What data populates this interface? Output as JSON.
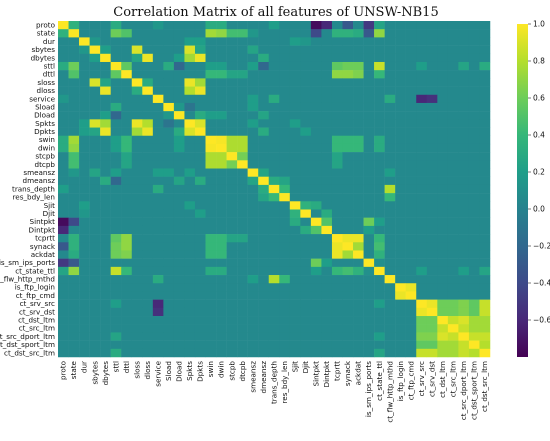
{
  "chart_data": {
    "type": "heatmap",
    "title": "Correlation Matrix of all features of  UNSW-NB15",
    "labels": [
      "proto",
      "state",
      "dur",
      "sbytes",
      "dbytes",
      "sttl",
      "dttl",
      "sloss",
      "dloss",
      "service",
      "Sload",
      "Dload",
      "Spkts",
      "Dpkts",
      "swin",
      "dwin",
      "stcpb",
      "dtcpb",
      "smeansz",
      "dmeansz",
      "trans_depth",
      "res_bdy_len",
      "Sjit",
      "Djit",
      "Sintpkt",
      "Dintpkt",
      "tcprtt",
      "synack",
      "ackdat",
      "is_sm_ips_ports",
      "ct_state_ttl",
      "ct_flw_http_mthd",
      "is_ftp_login",
      "ct_ftp_cmd",
      "ct_srv_src",
      "ct_srv_dst",
      "ct_dst_ltm",
      "ct_src_ltm",
      "ct_src_dport_ltm",
      "ct_dst_sport_ltm",
      "ct_dst_src_ltm"
    ],
    "colorbar": {
      "min": -0.8,
      "max": 1.0,
      "ticks": [
        1.0,
        0.8,
        0.6,
        0.4,
        0.2,
        0.0,
        -0.2,
        -0.4,
        -0.6
      ],
      "colormap": "viridis"
    },
    "base_value": 0.05,
    "cells": [
      [
        "proto",
        "state",
        0.35
      ],
      [
        "proto",
        "sttl",
        0.3
      ],
      [
        "proto",
        "swin",
        0.3
      ],
      [
        "proto",
        "dwin",
        0.3
      ],
      [
        "proto",
        "Sintpkt",
        -0.75
      ],
      [
        "proto",
        "Dintpkt",
        -0.6
      ],
      [
        "proto",
        "synack",
        -0.3
      ],
      [
        "proto",
        "is_sm_ips_ports",
        -0.5
      ],
      [
        "proto",
        "ct_state_ttl",
        0.25
      ],
      [
        "proto",
        "trans_depth",
        0.2
      ],
      [
        "proto",
        "service",
        0.15
      ],
      [
        "state",
        "sttl",
        0.6
      ],
      [
        "state",
        "dttl",
        0.5
      ],
      [
        "state",
        "swin",
        0.75
      ],
      [
        "state",
        "dwin",
        0.7
      ],
      [
        "state",
        "stcpb",
        0.45
      ],
      [
        "state",
        "dtcpb",
        0.45
      ],
      [
        "state",
        "ct_state_ttl",
        0.7
      ],
      [
        "state",
        "tcprtt",
        0.35
      ],
      [
        "state",
        "synack",
        0.35
      ],
      [
        "state",
        "ackdat",
        0.3
      ],
      [
        "state",
        "Sintpkt",
        -0.4
      ],
      [
        "state",
        "is_sm_ips_ports",
        -0.3
      ],
      [
        "state",
        "smeansz",
        0.15
      ],
      [
        "dur",
        "Sjit",
        0.2
      ],
      [
        "dur",
        "Djit",
        0.15
      ],
      [
        "dur",
        "Spkts",
        0.2
      ],
      [
        "dur",
        "Dpkts",
        0.2
      ],
      [
        "dur",
        "sbytes",
        0.15
      ],
      [
        "sbytes",
        "sloss",
        0.9
      ],
      [
        "sbytes",
        "Spkts",
        0.9
      ],
      [
        "sbytes",
        "dbytes",
        0.2
      ],
      [
        "sbytes",
        "Dpkts",
        0.25
      ],
      [
        "sbytes",
        "smeansz",
        0.25
      ],
      [
        "dbytes",
        "dloss",
        0.95
      ],
      [
        "dbytes",
        "Dpkts",
        0.95
      ],
      [
        "dbytes",
        "Spkts",
        0.75
      ],
      [
        "dbytes",
        "dmeansz",
        0.3
      ],
      [
        "dbytes",
        "sloss",
        0.25
      ],
      [
        "dbytes",
        "Dload",
        0.2
      ],
      [
        "sttl",
        "dttl",
        0.55
      ],
      [
        "sttl",
        "ct_state_ttl",
        0.85
      ],
      [
        "sttl",
        "synack",
        0.6
      ],
      [
        "sttl",
        "ackdat",
        0.6
      ],
      [
        "sttl",
        "tcprtt",
        0.55
      ],
      [
        "sttl",
        "Sload",
        0.3
      ],
      [
        "sttl",
        "dmeansz",
        -0.2
      ],
      [
        "sttl",
        "Dload",
        -0.2
      ],
      [
        "sttl",
        "swin",
        0.2
      ],
      [
        "sttl",
        "dwin",
        0.2
      ],
      [
        "sttl",
        "smeansz",
        0.2
      ],
      [
        "dttl",
        "synack",
        0.7
      ],
      [
        "dttl",
        "ackdat",
        0.65
      ],
      [
        "dttl",
        "tcprtt",
        0.7
      ],
      [
        "dttl",
        "ct_state_ttl",
        0.4
      ],
      [
        "dttl",
        "swin",
        0.4
      ],
      [
        "dttl",
        "dwin",
        0.4
      ],
      [
        "dttl",
        "stcpb",
        0.25
      ],
      [
        "dttl",
        "dtcpb",
        0.25
      ],
      [
        "sloss",
        "Spkts",
        0.95
      ],
      [
        "sloss",
        "Dpkts",
        0.75
      ],
      [
        "sloss",
        "dloss",
        0.3
      ],
      [
        "dloss",
        "Dpkts",
        0.95
      ],
      [
        "dloss",
        "Spkts",
        0.8
      ],
      [
        "service",
        "ct_srv_src",
        -0.6
      ],
      [
        "service",
        "ct_srv_dst",
        -0.55
      ],
      [
        "service",
        "ct_flw_http_mthd",
        0.3
      ],
      [
        "service",
        "trans_depth",
        0.3
      ],
      [
        "service",
        "smeansz",
        0.2
      ],
      [
        "Sload",
        "Dload",
        0.15
      ],
      [
        "Sload",
        "smeansz",
        0.2
      ],
      [
        "Sload",
        "Spkts",
        -0.1
      ],
      [
        "Dload",
        "Dpkts",
        0.3
      ],
      [
        "Dload",
        "swin",
        0.2
      ],
      [
        "Dload",
        "dwin",
        0.2
      ],
      [
        "Dload",
        "dmeansz",
        0.25
      ],
      [
        "Spkts",
        "Dpkts",
        0.9
      ],
      [
        "Spkts",
        "smeansz",
        0.2
      ],
      [
        "Spkts",
        "Sjit",
        0.2
      ],
      [
        "Dpkts",
        "dmeansz",
        0.3
      ],
      [
        "Dpkts",
        "Djit",
        0.2
      ],
      [
        "swin",
        "dwin",
        0.98
      ],
      [
        "swin",
        "stcpb",
        0.78
      ],
      [
        "swin",
        "dtcpb",
        0.78
      ],
      [
        "swin",
        "ct_state_ttl",
        0.3
      ],
      [
        "swin",
        "synack",
        0.4
      ],
      [
        "swin",
        "tcprtt",
        0.4
      ],
      [
        "swin",
        "ackdat",
        0.4
      ],
      [
        "dwin",
        "stcpb",
        0.78
      ],
      [
        "dwin",
        "dtcpb",
        0.78
      ],
      [
        "dwin",
        "ct_state_ttl",
        0.3
      ],
      [
        "dwin",
        "synack",
        0.4
      ],
      [
        "dwin",
        "tcprtt",
        0.4
      ],
      [
        "dwin",
        "ackdat",
        0.4
      ],
      [
        "stcpb",
        "dtcpb",
        0.62
      ],
      [
        "stcpb",
        "tcprtt",
        0.25
      ],
      [
        "dtcpb",
        "tcprtt",
        0.25
      ],
      [
        "smeansz",
        "dmeansz",
        0.25
      ],
      [
        "smeansz",
        "ct_flw_http_mthd",
        0.2
      ],
      [
        "dmeansz",
        "trans_depth",
        0.3
      ],
      [
        "dmeansz",
        "res_bdy_len",
        0.25
      ],
      [
        "trans_depth",
        "ct_flw_http_mthd",
        0.8
      ],
      [
        "trans_depth",
        "res_bdy_len",
        0.4
      ],
      [
        "res_bdy_len",
        "ct_flw_http_mthd",
        0.4
      ],
      [
        "Sjit",
        "Djit",
        0.35
      ],
      [
        "Sjit",
        "Sintpkt",
        0.3
      ],
      [
        "Djit",
        "Dintpkt",
        0.3
      ],
      [
        "Sintpkt",
        "Dintpkt",
        0.5
      ],
      [
        "Sintpkt",
        "is_sm_ips_ports",
        0.6
      ],
      [
        "Sintpkt",
        "ct_state_ttl",
        0.2
      ],
      [
        "Dintpkt",
        "is_sm_ips_ports",
        0.2
      ],
      [
        "tcprtt",
        "synack",
        0.95
      ],
      [
        "tcprtt",
        "ackdat",
        0.95
      ],
      [
        "synack",
        "ackdat",
        0.75
      ],
      [
        "tcprtt",
        "ct_state_ttl",
        0.4
      ],
      [
        "synack",
        "ct_state_ttl",
        0.45
      ],
      [
        "ackdat",
        "ct_state_ttl",
        0.35
      ],
      [
        "is_sm_ips_ports",
        "ct_state_ttl",
        0.1
      ],
      [
        "is_ftp_login",
        "ct_ftp_cmd",
        0.95
      ],
      [
        "ct_srv_src",
        "ct_srv_dst",
        0.95
      ],
      [
        "ct_srv_src",
        "ct_dst_ltm",
        0.6
      ],
      [
        "ct_srv_src",
        "ct_src_ltm",
        0.6
      ],
      [
        "ct_srv_src",
        "ct_src_dport_ltm",
        0.65
      ],
      [
        "ct_srv_src",
        "ct_dst_sport_ltm",
        0.55
      ],
      [
        "ct_srv_src",
        "ct_dst_src_ltm",
        0.85
      ],
      [
        "ct_srv_dst",
        "ct_dst_ltm",
        0.6
      ],
      [
        "ct_srv_dst",
        "ct_src_ltm",
        0.6
      ],
      [
        "ct_srv_dst",
        "ct_src_dport_ltm",
        0.65
      ],
      [
        "ct_srv_dst",
        "ct_dst_sport_ltm",
        0.55
      ],
      [
        "ct_srv_dst",
        "ct_dst_src_ltm",
        0.85
      ],
      [
        "ct_dst_ltm",
        "ct_src_ltm",
        0.85
      ],
      [
        "ct_dst_ltm",
        "ct_src_dport_ltm",
        0.9
      ],
      [
        "ct_dst_ltm",
        "ct_dst_sport_ltm",
        0.75
      ],
      [
        "ct_dst_ltm",
        "ct_dst_src_ltm",
        0.75
      ],
      [
        "ct_src_ltm",
        "ct_src_dport_ltm",
        0.85
      ],
      [
        "ct_src_ltm",
        "ct_dst_sport_ltm",
        0.75
      ],
      [
        "ct_src_ltm",
        "ct_dst_src_ltm",
        0.75
      ],
      [
        "ct_src_dport_ltm",
        "ct_dst_sport_ltm",
        0.85
      ],
      [
        "ct_src_dport_ltm",
        "ct_dst_src_ltm",
        0.85
      ],
      [
        "ct_dst_sport_ltm",
        "ct_dst_src_ltm",
        0.8
      ],
      [
        "ct_state_ttl",
        "ct_srv_src",
        0.2
      ],
      [
        "ct_state_ttl",
        "ct_dst_src_ltm",
        0.25
      ],
      [
        "ct_state_ttl",
        "ct_src_dport_ltm",
        0.2
      ],
      [
        "sttl",
        "ct_dst_src_ltm",
        0.3
      ],
      [
        "sttl",
        "ct_src_dport_ltm",
        0.25
      ],
      [
        "sttl",
        "ct_srv_src",
        0.2
      ]
    ]
  }
}
